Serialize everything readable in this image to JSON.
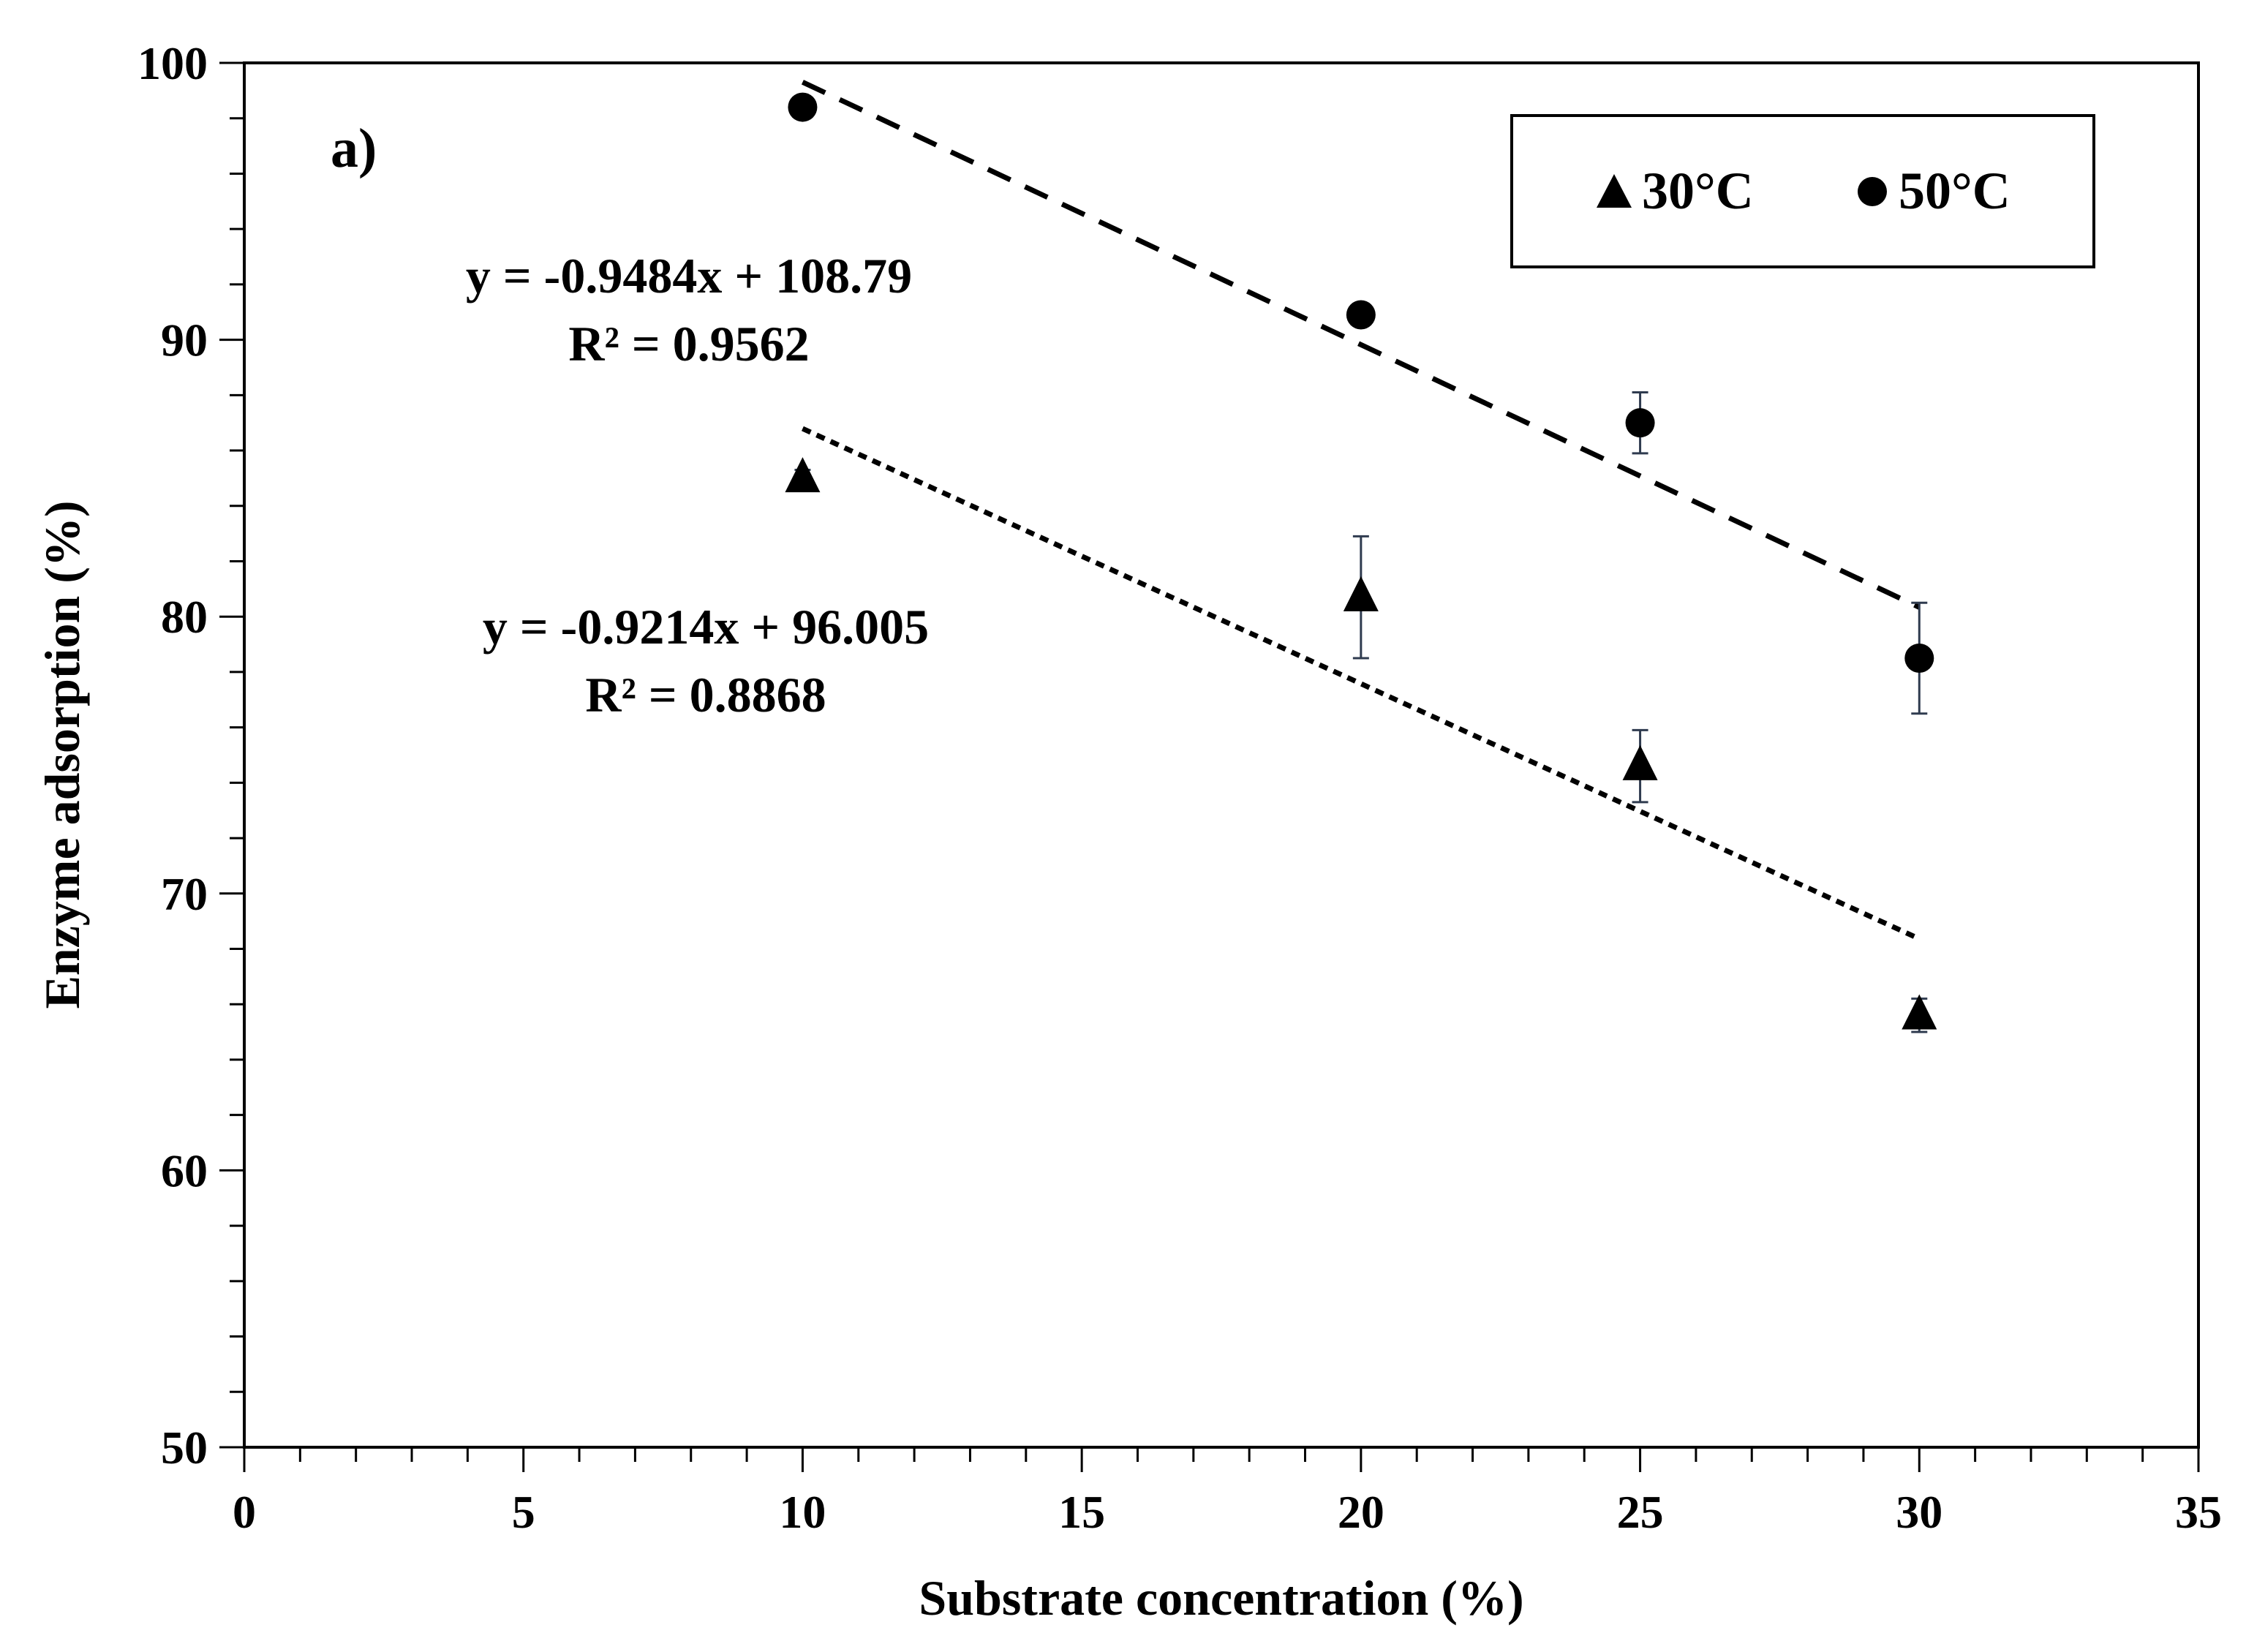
{
  "chart_data": {
    "type": "scatter",
    "panel_label": "a)",
    "xlabel": "Substrate concentration (%)",
    "ylabel": "Enzyme adsorption (%)",
    "xlim": [
      0,
      35
    ],
    "ylim": [
      50,
      100
    ],
    "x_major_ticks": [
      0,
      5,
      10,
      15,
      20,
      25,
      30,
      35
    ],
    "x_tick_labels": [
      "0",
      "5",
      "10",
      "15",
      "20",
      "25",
      "30",
      "35"
    ],
    "x_minor_step": 1,
    "y_major_ticks": [
      50,
      60,
      70,
      80,
      90,
      100
    ],
    "y_tick_labels": [
      "50",
      "60",
      "70",
      "80",
      "90",
      "100"
    ],
    "y_minor_step": 2,
    "grid": false,
    "legend_position": "top-right",
    "series": [
      {
        "name": "30°C",
        "marker": "triangle",
        "color": "#000000",
        "x": [
          10,
          20,
          25,
          30
        ],
        "y": [
          85.0,
          80.7,
          74.6,
          65.6
        ],
        "err": [
          0.3,
          2.2,
          1.3,
          0.6
        ],
        "trendline": {
          "style": "dotted",
          "slope": -0.9214,
          "intercept": 96.005,
          "x_range": [
            10,
            30
          ],
          "equation": "y = -0.9214x + 96.005",
          "r2": "R² = 0.8868"
        }
      },
      {
        "name": "50°C",
        "marker": "circle",
        "color": "#000000",
        "x": [
          10,
          20,
          25,
          30
        ],
        "y": [
          98.4,
          90.9,
          87.0,
          78.5
        ],
        "err": [
          0.2,
          0.2,
          1.1,
          2.0
        ],
        "trendline": {
          "style": "dashed",
          "slope": -0.9484,
          "intercept": 108.79,
          "x_range": [
            10,
            30
          ],
          "equation": "y = -0.9484x + 108.79",
          "r2": "R² = 0.9562"
        }
      }
    ],
    "error_bar_color": "#2f3b4f"
  }
}
